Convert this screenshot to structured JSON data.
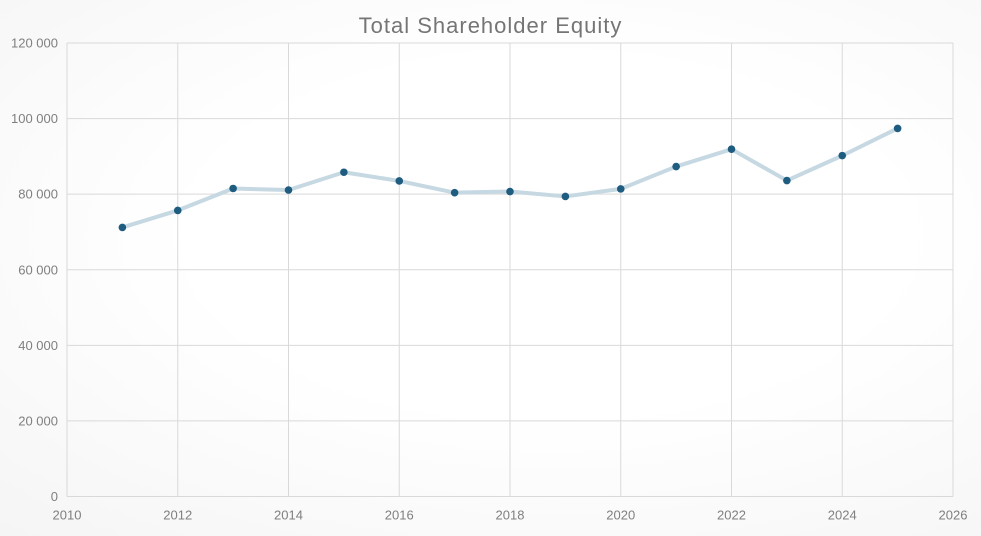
{
  "page": {
    "title": "Total Shareholder Equity"
  },
  "chart_data": {
    "type": "line",
    "title": "Total Shareholder Equity",
    "x": [
      2011,
      2012,
      2013,
      2014,
      2015,
      2016,
      2017,
      2018,
      2019,
      2020,
      2021,
      2022,
      2023,
      2024,
      2025
    ],
    "series": [
      {
        "name": "Total Shareholder Equity",
        "values": [
          71200,
          75700,
          81500,
          81100,
          85800,
          83500,
          80400,
          80700,
          79400,
          81400,
          87300,
          91900,
          83600,
          90200,
          97400
        ]
      }
    ],
    "xlabel": "",
    "ylabel": "",
    "xlim": [
      2010,
      2026
    ],
    "ylim": [
      0,
      120000
    ],
    "x_ticks": [
      2010,
      2012,
      2014,
      2016,
      2018,
      2020,
      2022,
      2024,
      2026
    ],
    "x_tick_labels": [
      "2010",
      "2012",
      "2014",
      "2016",
      "2018",
      "2020",
      "2022",
      "2024",
      "2026"
    ],
    "y_ticks": [
      0,
      20000,
      40000,
      60000,
      80000,
      100000,
      120000
    ],
    "y_tick_labels": [
      "0",
      "20 000",
      "40 000",
      "60 000",
      "80 000",
      "100 000",
      "120 000"
    ],
    "grid": true,
    "legend_visible": false,
    "marker_style": "circle",
    "colors": {
      "line": "#c6d8e2",
      "marker": "#1e5c80",
      "grid": "#d9d9d9",
      "tick_label": "#7f7f7f",
      "title": "#757575"
    }
  }
}
